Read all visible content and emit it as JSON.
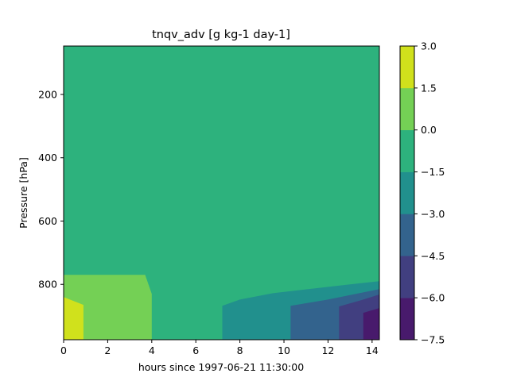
{
  "chart_data": {
    "type": "heatmap",
    "subtype": "filled-contour",
    "title": "tnqv_adv [g kg-1 day-1]",
    "xlabel": "hours since 1997-06-21 11:30:00",
    "ylabel": "Pressure [hPa]",
    "xlim": [
      0,
      14.33
    ],
    "ylim": [
      975,
      47
    ],
    "y_inverted": true,
    "xticks": [
      0,
      2,
      4,
      6,
      8,
      10,
      12,
      14
    ],
    "yticks": [
      200,
      400,
      600,
      800
    ],
    "colorbar": {
      "levels": [
        -7.5,
        -6.0,
        -4.5,
        -3.0,
        -1.5,
        0.0,
        1.5,
        3.0
      ],
      "tick_labels": [
        "3.0",
        "1.5",
        "0.0",
        "−1.5",
        "−3.0",
        "−4.5",
        "−6.0",
        "−7.5"
      ],
      "colors": [
        "#481a6c",
        "#413f80",
        "#33638d",
        "#21908d",
        "#2db27d",
        "#74d055",
        "#d0e11c"
      ]
    },
    "background_level": [
      -1.5,
      0.0
    ],
    "regions": [
      {
        "level": [
          0.0,
          1.5
        ],
        "points": [
          [
            0,
            770
          ],
          [
            3.7,
            770
          ],
          [
            4.0,
            830
          ],
          [
            4.0,
            975
          ],
          [
            0,
            975
          ]
        ]
      },
      {
        "level": [
          1.5,
          3.0
        ],
        "points": [
          [
            0,
            840
          ],
          [
            0.9,
            865
          ],
          [
            0.9,
            975
          ],
          [
            0,
            975
          ]
        ]
      },
      {
        "level": [
          -3.0,
          -1.5
        ],
        "points": [
          [
            7.2,
            975
          ],
          [
            7.2,
            868
          ],
          [
            8.0,
            848
          ],
          [
            9.5,
            828
          ],
          [
            11.5,
            812
          ],
          [
            13.0,
            800
          ],
          [
            14.33,
            790
          ],
          [
            14.33,
            975
          ]
        ]
      },
      {
        "level": [
          -4.5,
          -3.0
        ],
        "points": [
          [
            10.3,
            975
          ],
          [
            10.3,
            868
          ],
          [
            12.0,
            848
          ],
          [
            14.33,
            815
          ],
          [
            14.33,
            975
          ]
        ]
      },
      {
        "level": [
          -6.0,
          -4.5
        ],
        "points": [
          [
            12.5,
            975
          ],
          [
            12.5,
            870
          ],
          [
            13.5,
            850
          ],
          [
            14.33,
            832
          ],
          [
            14.33,
            975
          ]
        ]
      },
      {
        "level": [
          -7.5,
          -6.0
        ],
        "points": [
          [
            13.6,
            975
          ],
          [
            13.6,
            890
          ],
          [
            14.33,
            875
          ],
          [
            14.33,
            975
          ]
        ]
      }
    ]
  }
}
